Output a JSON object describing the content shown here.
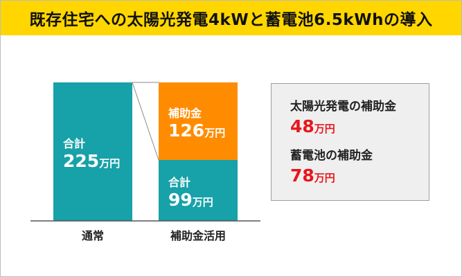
{
  "title": "既存住宅への太陽光発電4kWと蓄電池6.5kWhの導入",
  "colors": {
    "banner": "#ffd600",
    "teal": "#17a1a8",
    "orange": "#ff8c00",
    "red": "#e8161c",
    "box_bg": "#efefef",
    "box_border": "#9e9e9e"
  },
  "chart_data": {
    "type": "bar",
    "unit": "万円",
    "categories": [
      "通常",
      "補助金活用"
    ],
    "ylim": [
      0,
      225
    ],
    "bars": [
      {
        "category": "通常",
        "segments": [
          {
            "label": "合計",
            "value": 225,
            "color": "#17a1a8"
          }
        ]
      },
      {
        "category": "補助金活用",
        "segments": [
          {
            "label": "合計",
            "value": 99,
            "color": "#17a1a8"
          },
          {
            "label": "補助金",
            "value": 126,
            "color": "#ff8c00"
          }
        ]
      }
    ]
  },
  "info_box": {
    "items": [
      {
        "label": "太陽光発電の補助金",
        "value": "48",
        "unit": "万円"
      },
      {
        "label": "蓄電池の補助金",
        "value": "78",
        "unit": "万円"
      }
    ]
  }
}
